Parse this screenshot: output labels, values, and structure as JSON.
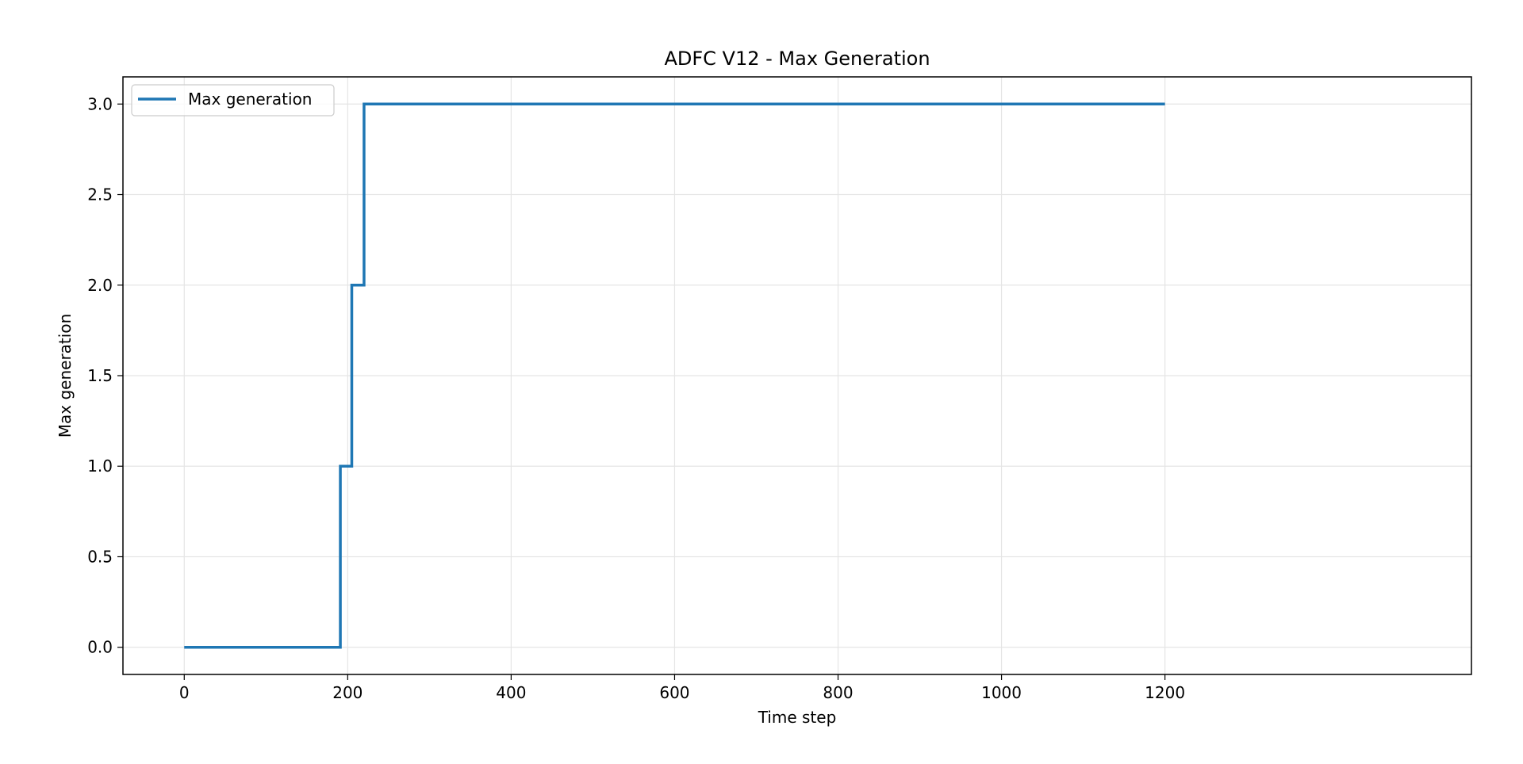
{
  "chart_data": {
    "type": "line",
    "title": "ADFC V12 - Max Generation",
    "xlabel": "Time step",
    "ylabel": "Max generation",
    "xlim": [
      -75,
      1575
    ],
    "ylim": [
      -0.15,
      3.15
    ],
    "xticks": [
      0,
      200,
      400,
      600,
      800,
      1000,
      1200
    ],
    "yticks": [
      0.0,
      0.5,
      1.0,
      1.5,
      2.0,
      2.5,
      3.0
    ],
    "xtick_labels": [
      "0",
      "200",
      "400",
      "600",
      "800",
      "1000",
      "1200"
    ],
    "ytick_labels": [
      "0.0",
      "0.5",
      "1.0",
      "1.5",
      "2.0",
      "2.5",
      "3.0"
    ],
    "grid": true,
    "legend_position": "top-left",
    "series": [
      {
        "name": "Max generation",
        "color": "#1f77b4",
        "step": true,
        "x": [
          0,
          191,
          205,
          220,
          1200
        ],
        "y": [
          0,
          1,
          2,
          3,
          3
        ]
      }
    ]
  }
}
